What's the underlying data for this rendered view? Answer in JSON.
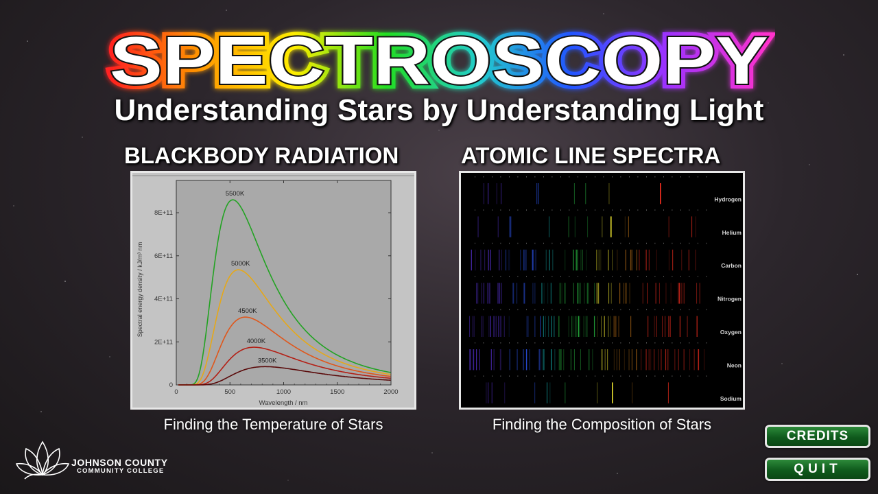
{
  "title": "SPECTROSCOPY",
  "subtitle": "Understanding Stars by Understanding Light",
  "sections": {
    "blackbody": {
      "heading": "BLACKBODY RADIATION",
      "caption": "Finding the Temperature of Stars"
    },
    "line_spectra": {
      "heading": "ATOMIC LINE SPECTRA",
      "caption": "Finding the Composition of Stars",
      "elements": [
        "Hydrogen",
        "Helium",
        "Carbon",
        "Nitrogen",
        "Oxygen",
        "Neon",
        "Sodium"
      ]
    }
  },
  "chart_data": {
    "type": "line",
    "xlabel": "Wavelength / nm",
    "ylabel": "Spectral energy density / kJ/m³ nm",
    "xlim": [
      0,
      2000
    ],
    "ylim": [
      0,
      950000000000
    ],
    "x_ticks": [
      "0",
      "500",
      "1000",
      "1500",
      "2000"
    ],
    "y_ticks": [
      "0",
      "2E+11",
      "4E+11",
      "6E+11",
      "8E+11"
    ],
    "series": [
      {
        "name": "5500K",
        "temperature": 5500,
        "peak_nm": 527,
        "peak_value": 860000000000,
        "color": "#22a322"
      },
      {
        "name": "5000K",
        "temperature": 5000,
        "peak_nm": 580,
        "peak_value": 535000000000,
        "color": "#e6a818"
      },
      {
        "name": "4500K",
        "temperature": 4500,
        "peak_nm": 644,
        "peak_value": 315000000000,
        "color": "#e0561a"
      },
      {
        "name": "4000K",
        "temperature": 4000,
        "peak_nm": 724,
        "peak_value": 175000000000,
        "color": "#b41e14"
      },
      {
        "name": "3500K",
        "temperature": 3500,
        "peak_nm": 828,
        "peak_value": 85000000000,
        "color": "#5a0a0a"
      }
    ]
  },
  "buttons": {
    "credits": "CREDITS",
    "quit": "QUIT"
  },
  "logo": {
    "line1": "JOHNSON COUNTY",
    "line2": "COMMUNITY COLLEGE"
  },
  "colors": {
    "button_green": "#166b25",
    "title_glow": [
      "#ff2020",
      "#ff9900",
      "#ffee00",
      "#22dd22",
      "#22cccc",
      "#2255ff",
      "#9933ff",
      "#ff33cc"
    ]
  }
}
